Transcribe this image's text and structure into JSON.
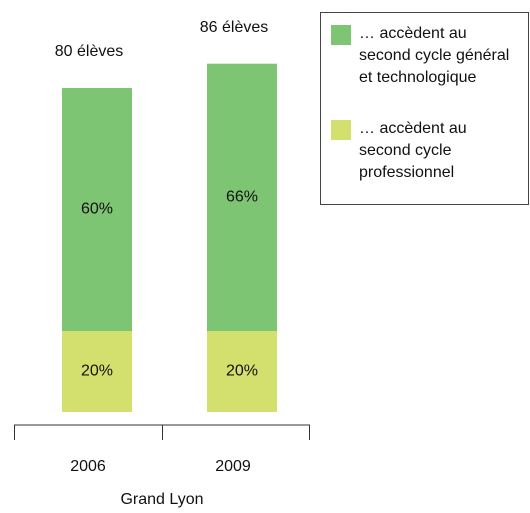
{
  "chart_data": {
    "type": "stacked_bar",
    "categories": [
      "2006",
      "2009"
    ],
    "x_label": "Grand Lyon",
    "bar_labels": [
      "80 élèves",
      "86 élèves"
    ],
    "series": [
      {
        "name": "… accèdent au second cycle professionnel",
        "color": "#d4e06e",
        "values": [
          20,
          20
        ],
        "value_labels": [
          "20%",
          "20%"
        ]
      },
      {
        "name": "… accèdent au second cycle général et technologique",
        "color": "#7dc473",
        "values": [
          60,
          66
        ],
        "value_labels": [
          "60%",
          "66%"
        ]
      }
    ],
    "legend": "top-right"
  }
}
